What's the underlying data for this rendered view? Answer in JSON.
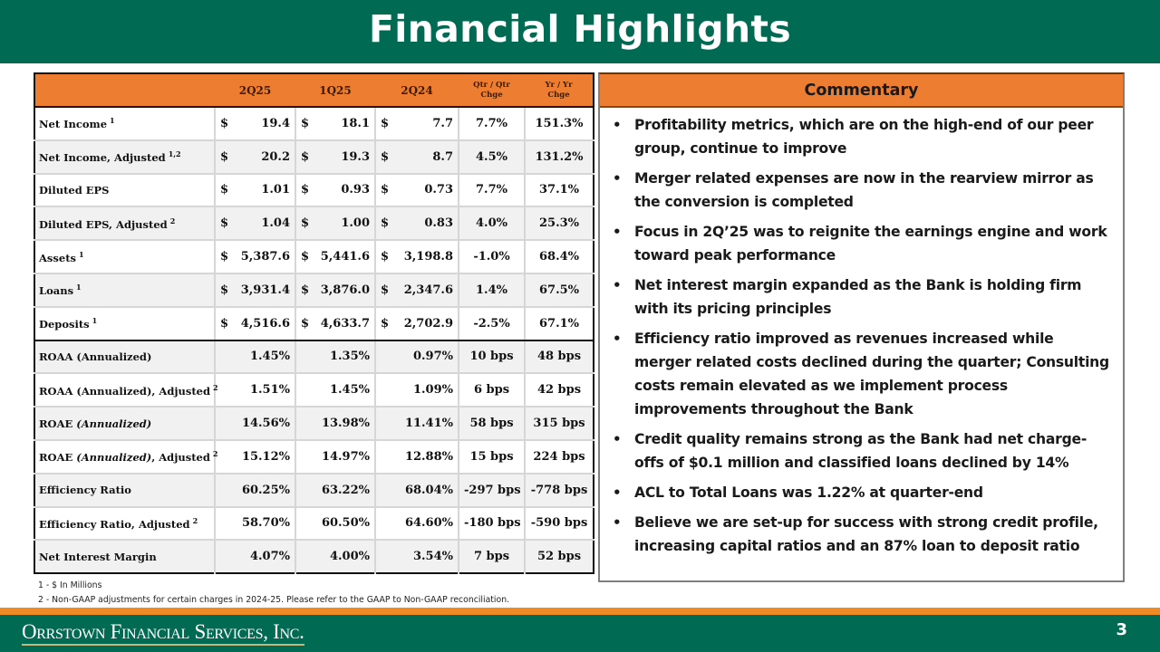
{
  "title": "Financial Highlights",
  "table": {
    "columns": [
      "",
      "2Q25",
      "1Q25",
      "2Q24",
      "Qtr / Qtr Chge",
      "Yr / Yr Chge"
    ],
    "column_lines": {
      "qoq": [
        "Qtr / Qtr",
        "Chge"
      ],
      "yoy": [
        "Yr / Yr",
        "Chge"
      ]
    },
    "rows": [
      {
        "label": "Net Income",
        "sup": "1",
        "dollar": true,
        "q2_25": "19.4",
        "q1_25": "18.1",
        "q2_24": "7.7",
        "qoq": "7.7%",
        "yoy": "151.3%"
      },
      {
        "label": "Net Income, Adjusted",
        "sup": "1,2",
        "dollar": true,
        "q2_25": "20.2",
        "q1_25": "19.3",
        "q2_24": "8.7",
        "qoq": "4.5%",
        "yoy": "131.2%"
      },
      {
        "label": "Diluted EPS",
        "sup": "",
        "dollar": true,
        "q2_25": "1.01",
        "q1_25": "0.93",
        "q2_24": "0.73",
        "qoq": "7.7%",
        "yoy": "37.1%"
      },
      {
        "label": "Diluted EPS, Adjusted",
        "sup": "2",
        "dollar": true,
        "q2_25": "1.04",
        "q1_25": "1.00",
        "q2_24": "0.83",
        "qoq": "4.0%",
        "yoy": "25.3%"
      },
      {
        "label": "Assets",
        "sup": "1",
        "dollar": true,
        "q2_25": "5,387.6",
        "q1_25": "5,441.6",
        "q2_24": "3,198.8",
        "qoq": "-1.0%",
        "yoy": "68.4%"
      },
      {
        "label": "Loans",
        "sup": "1",
        "dollar": true,
        "q2_25": "3,931.4",
        "q1_25": "3,876.0",
        "q2_24": "2,347.6",
        "qoq": "1.4%",
        "yoy": "67.5%"
      },
      {
        "label": "Deposits",
        "sup": "1",
        "dollar": true,
        "q2_25": "4,516.6",
        "q1_25": "4,633.7",
        "q2_24": "2,702.9",
        "qoq": "-2.5%",
        "yoy": "67.1%"
      },
      {
        "label": "ROAA (Annualized)",
        "sup": "",
        "dollar": false,
        "q2_25": "1.45%",
        "q1_25": "1.35%",
        "q2_24": "0.97%",
        "qoq": "10 bps",
        "yoy": "48 bps"
      },
      {
        "label": "ROAA (Annualized), Adjusted",
        "sup": "2",
        "dollar": false,
        "q2_25": "1.51%",
        "q1_25": "1.45%",
        "q2_24": "1.09%",
        "qoq": "6 bps",
        "yoy": "42 bps"
      },
      {
        "label": "ROAE",
        "label_italic": "(Annualized)",
        "label_tail": "",
        "sup": "",
        "dollar": false,
        "q2_25": "14.56%",
        "q1_25": "13.98%",
        "q2_24": "11.41%",
        "qoq": "58 bps",
        "yoy": "315 bps"
      },
      {
        "label": "ROAE",
        "label_italic": "(Annualized)",
        "label_tail": ", Adjusted",
        "sup": "2",
        "dollar": false,
        "q2_25": "15.12%",
        "q1_25": "14.97%",
        "q2_24": "12.88%",
        "qoq": "15 bps",
        "yoy": "224 bps"
      },
      {
        "label": "Efficiency Ratio",
        "sup": "",
        "dollar": false,
        "q2_25": "60.25%",
        "q1_25": "63.22%",
        "q2_24": "68.04%",
        "qoq": "-297 bps",
        "yoy": "-778 bps"
      },
      {
        "label": "Efficiency Ratio, Adjusted",
        "sup": "2",
        "dollar": false,
        "q2_25": "58.70%",
        "q1_25": "60.50%",
        "q2_24": "64.60%",
        "qoq": "-180 bps",
        "yoy": "-590 bps"
      },
      {
        "label": "Net Interest Margin",
        "sup": "",
        "dollar": false,
        "q2_25": "4.07%",
        "q1_25": "4.00%",
        "q2_24": "3.54%",
        "qoq": "7 bps",
        "yoy": "52 bps"
      }
    ],
    "currency_symbol": "$"
  },
  "commentary": {
    "title": "Commentary",
    "bullet_glyph": "•",
    "items": [
      "Profitability metrics, which are on the high-end of our peer group, continue to improve",
      "Merger related expenses are now in the rearview mirror as the conversion is completed",
      "Focus in 2Q’25 was to reignite the earnings engine and work toward peak performance",
      "Net interest margin expanded as the Bank is holding firm with its pricing principles",
      "Efficiency ratio improved as revenues increased while merger related costs declined during the quarter; Consulting costs remain elevated as we implement process improvements throughout the Bank",
      "Credit quality remains strong as the Bank had net charge-offs of $0.1 million and classified loans declined by 14%",
      "ACL to Total Loans was 1.22% at quarter-end",
      "Believe we are set-up for success with strong credit profile, increasing capital ratios and an 87% loan to deposit ratio"
    ]
  },
  "footnotes": [
    "1 - $ In Millions",
    "2 - Non-GAAP adjustments for certain charges in 2024-25. Please refer to the GAAP to Non-GAAP reconciliation."
  ],
  "footer": {
    "company": "Orrstown Financial Services, Inc.",
    "page_number": "3"
  },
  "colors": {
    "brand_green": "#006B52",
    "accent_orange": "#ED7D31",
    "footer_orange": "#F08A24"
  }
}
